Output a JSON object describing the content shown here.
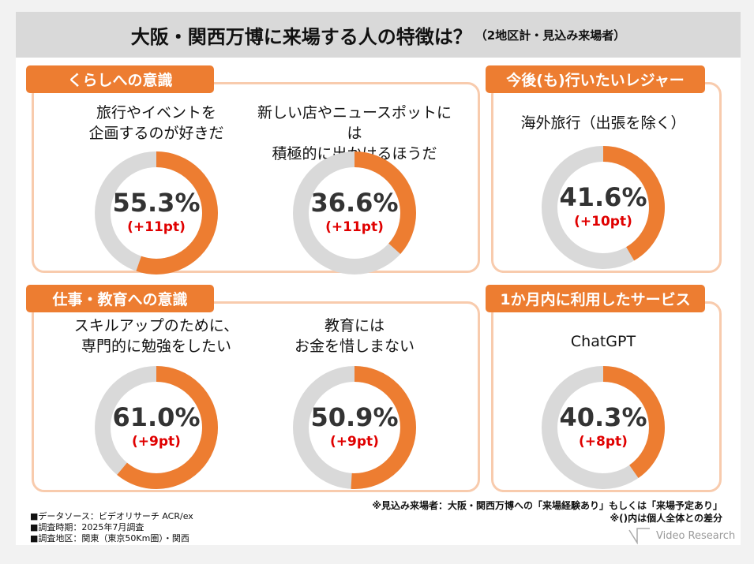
{
  "title": {
    "main": "大阪・関西万博に来場する人の特徴は？",
    "sub": "（2地区計・見込み来場者）"
  },
  "sections": [
    {
      "label": "くらしへの意識",
      "items": [
        {
          "question": "旅行やイベントを\n企画するのが好きだ",
          "percent": 55.3,
          "percent_label": "55.3%",
          "diff": "(+11pt)"
        },
        {
          "question": "新しい店やニュースポットには\n積極的に出かけるほうだ",
          "percent": 36.6,
          "percent_label": "36.6%",
          "diff": "(+11pt)"
        }
      ]
    },
    {
      "label": "今後(も)行いたいレジャー",
      "items": [
        {
          "question": "海外旅行（出張を除く）",
          "percent": 41.6,
          "percent_label": "41.6%",
          "diff": "(+10pt)"
        }
      ]
    },
    {
      "label": "仕事・教育への意識",
      "items": [
        {
          "question": "スキルアップのために、\n専門的に勉強をしたい",
          "percent": 61.0,
          "percent_label": "61.0%",
          "diff": "(+9pt)"
        },
        {
          "question": "教育には\nお金を惜しまない",
          "percent": 50.9,
          "percent_label": "50.9%",
          "diff": "(+9pt)"
        }
      ]
    },
    {
      "label": "1か月内に利用したサービス",
      "items": [
        {
          "question": "ChatGPT",
          "percent": 40.3,
          "percent_label": "40.3%",
          "diff": "(+8pt)"
        }
      ]
    }
  ],
  "notes": [
    "※見込み来場者：大阪・関西万博への「来場経験あり」もしくは「来場予定あり」",
    "※()内は個人全体との差分"
  ],
  "sources": [
    "■データソース：ビデオリサーチ ACR/ex",
    "■調査時期：2025年7月調査",
    "■調査地区：関東（東京50Km圏）・関西"
  ],
  "logo": "Video Research",
  "colors": {
    "accent": "#ed7d31",
    "track": "#d9d9d9",
    "border": "#f8cbad",
    "diff": "#e00000"
  }
}
